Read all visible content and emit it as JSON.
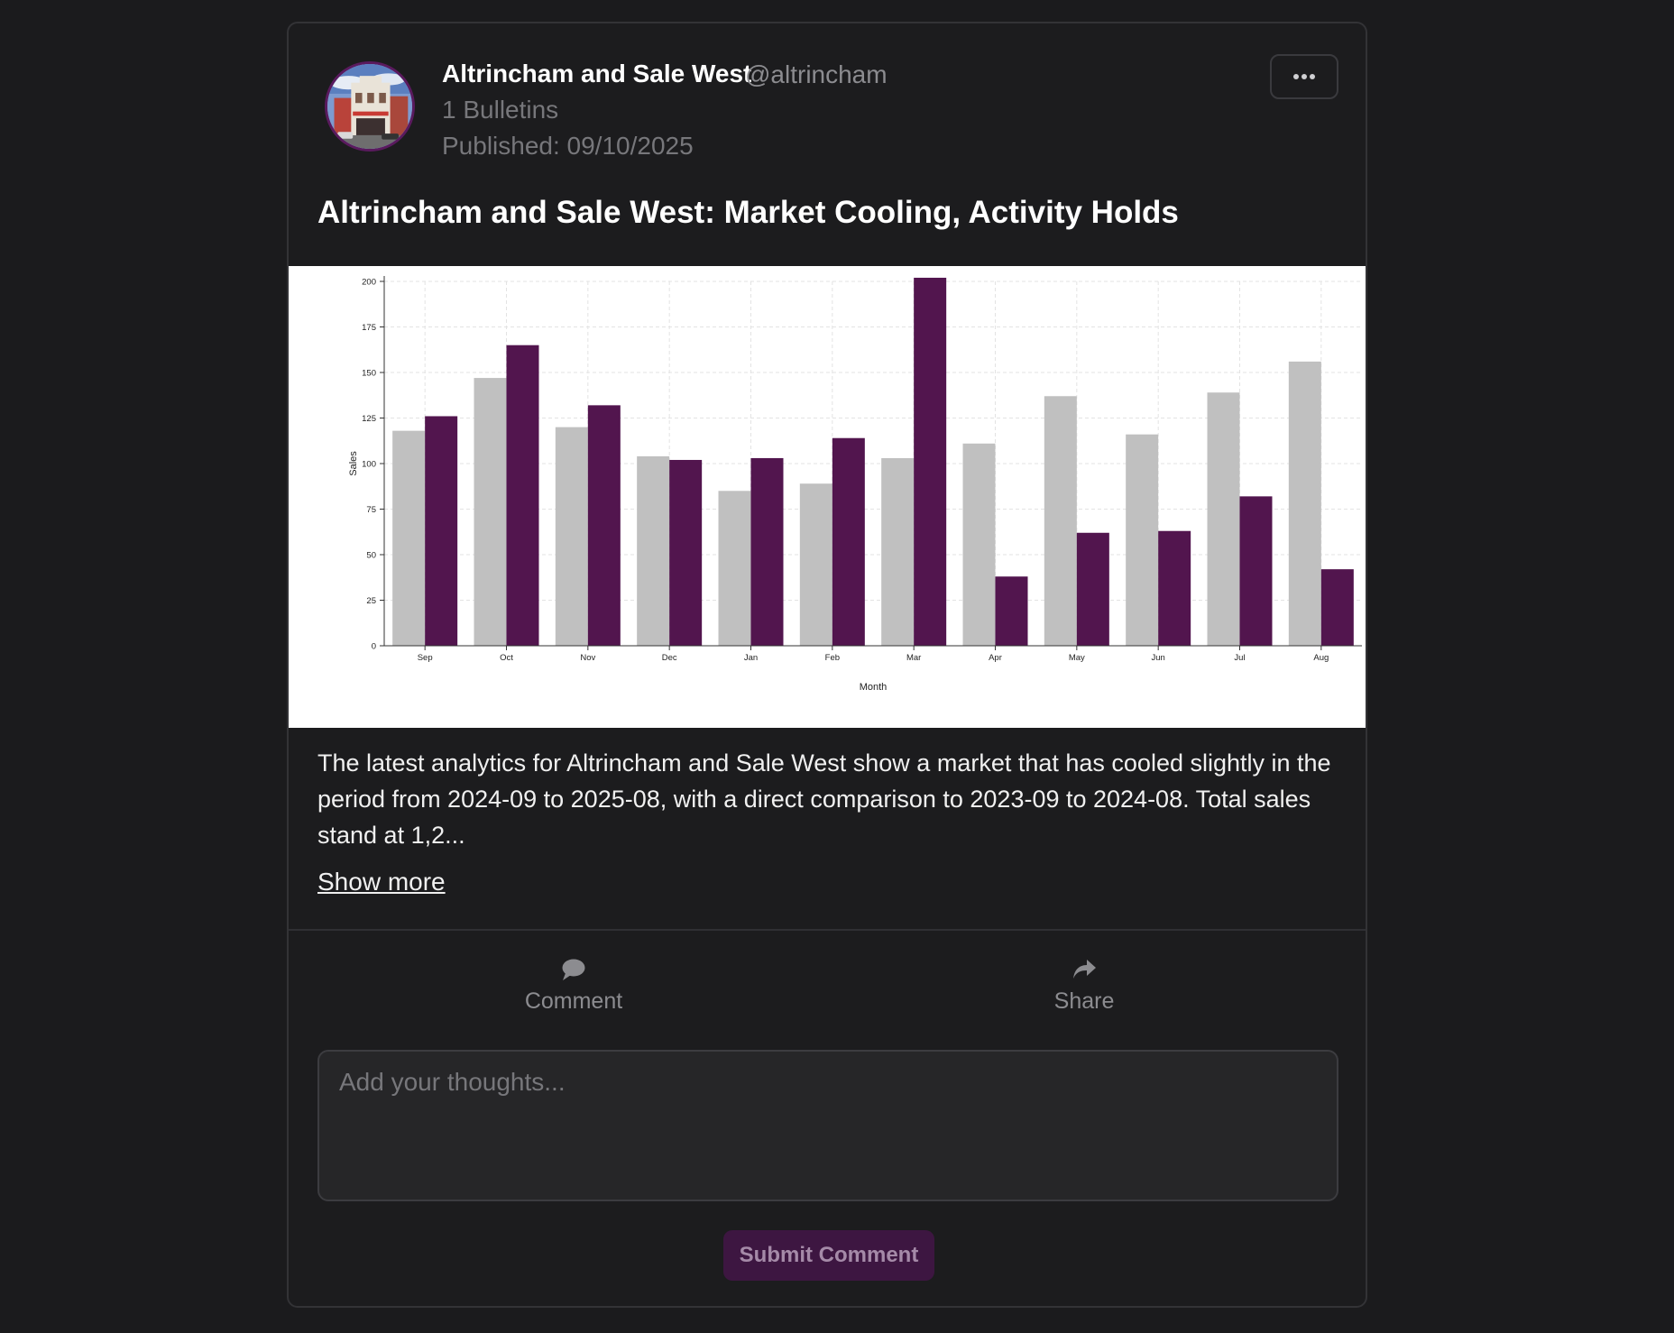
{
  "author": {
    "name": "Altrincham and Sale West",
    "handle": "@altrincham",
    "bulletins": "1 Bulletins",
    "published": "Published: 09/10/2025",
    "avatar_icon": "building-photo-icon"
  },
  "post": {
    "title": "Altrincham and Sale West: Market Cooling, Activity Holds",
    "body": "The latest analytics for Altrincham and Sale West show a market that has cooled slightly in the period from 2024-09 to 2025-08, with a direct comparison to 2023-09 to 2024-08. Total sales stand at 1,2...",
    "show_more": "Show more"
  },
  "actions": {
    "comment_label": "Comment",
    "comment_icon": "speech-bubble-icon",
    "share_label": "Share",
    "share_icon": "share-arrow-icon",
    "more_icon": "ellipsis-icon"
  },
  "comment_form": {
    "placeholder": "Add your thoughts...",
    "submit_label": "Submit Comment"
  },
  "colors": {
    "accent": "#52154e",
    "previous_period": "#c0c0c0",
    "background": "#1c1c1e"
  },
  "chart_data": {
    "type": "bar",
    "categories": [
      "Sep",
      "Oct",
      "Nov",
      "Dec",
      "Jan",
      "Feb",
      "Mar",
      "Apr",
      "May",
      "Jun",
      "Jul",
      "Aug"
    ],
    "series": [
      {
        "values": [
          118,
          147,
          120,
          104,
          85,
          89,
          103,
          111,
          137,
          116,
          139,
          156
        ],
        "color": "#c0c0c0"
      },
      {
        "values": [
          126,
          165,
          132,
          102,
          103,
          114,
          202,
          38,
          62,
          63,
          82,
          42
        ],
        "color": "#52154e"
      }
    ],
    "xlabel": "Month",
    "ylabel": "Sales",
    "ylim": [
      0,
      200
    ],
    "yticks": [
      0,
      25,
      50,
      75,
      100,
      125,
      150,
      175,
      200
    ],
    "grid": true
  }
}
